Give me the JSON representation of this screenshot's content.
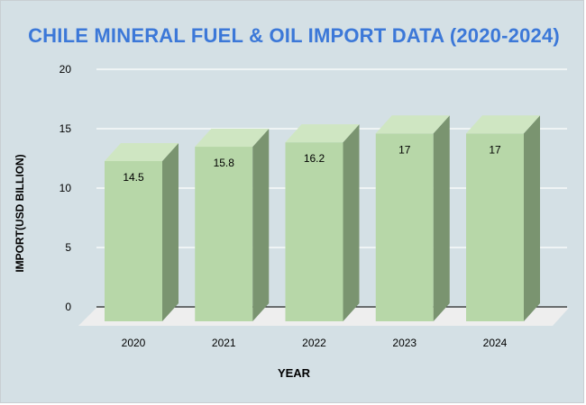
{
  "chart_data": {
    "type": "bar",
    "title": "CHILE MINERAL FUEL & OIL IMPORT DATA (2020-2024)",
    "xlabel": "YEAR",
    "ylabel": "IMPORT(USD BILLION)",
    "categories": [
      "2020",
      "2021",
      "2022",
      "2023",
      "2024"
    ],
    "values": [
      14.5,
      15.8,
      16.2,
      17,
      17
    ],
    "data_labels": [
      "14.5",
      "15.8",
      "16.2",
      "17",
      "17"
    ],
    "ylim": [
      0,
      20
    ],
    "yticks": [
      "0",
      "5",
      "10",
      "15",
      "20"
    ],
    "grid": true,
    "style": "3d-column",
    "colors": {
      "bar_front": "#b7d7a8",
      "bar_top": "#cfe6c2",
      "bar_side": "#7a9470",
      "floor": "#eeeeee",
      "background": "#d4e0e5",
      "gridline": "#ffffff",
      "title": "#3c78d8"
    }
  }
}
